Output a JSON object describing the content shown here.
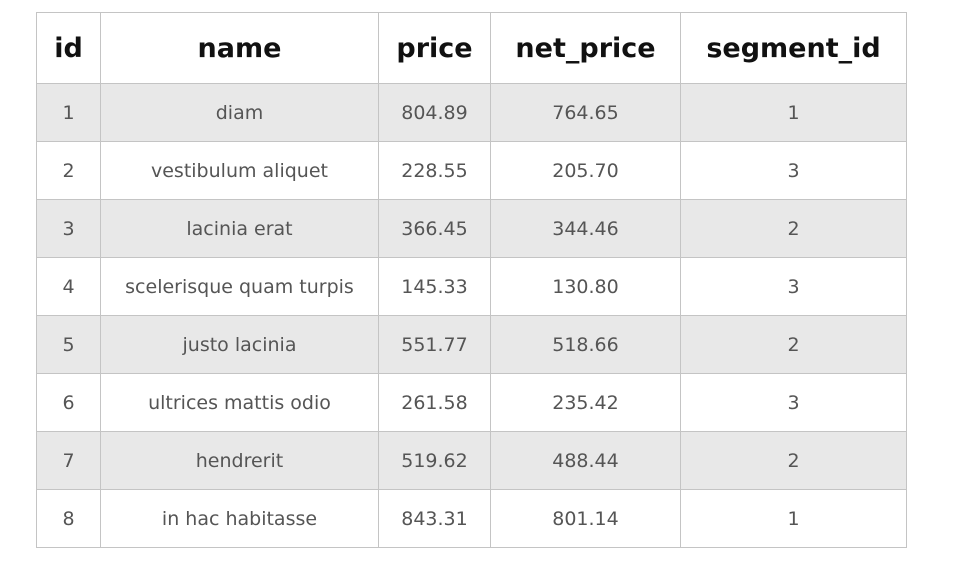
{
  "table": {
    "columns": [
      "id",
      "name",
      "price",
      "net_price",
      "segment_id"
    ],
    "rows": [
      [
        "1",
        "diam",
        "804.89",
        "764.65",
        "1"
      ],
      [
        "2",
        "vestibulum aliquet",
        "228.55",
        "205.70",
        "3"
      ],
      [
        "3",
        "lacinia erat",
        "366.45",
        "344.46",
        "2"
      ],
      [
        "4",
        "scelerisque quam turpis",
        "145.33",
        "130.80",
        "3"
      ],
      [
        "5",
        "justo lacinia",
        "551.77",
        "518.66",
        "2"
      ],
      [
        "6",
        "ultrices mattis odio",
        "261.58",
        "235.42",
        "3"
      ],
      [
        "7",
        "hendrerit",
        "519.62",
        "488.44",
        "2"
      ],
      [
        "8",
        "in hac habitasse",
        "843.31",
        "801.14",
        "1"
      ]
    ]
  },
  "colors": {
    "row_stripe": "#e8e8e8",
    "row_plain": "#ffffff",
    "border": "#c4c4c4",
    "header_text": "#111111",
    "cell_text": "#555555"
  }
}
